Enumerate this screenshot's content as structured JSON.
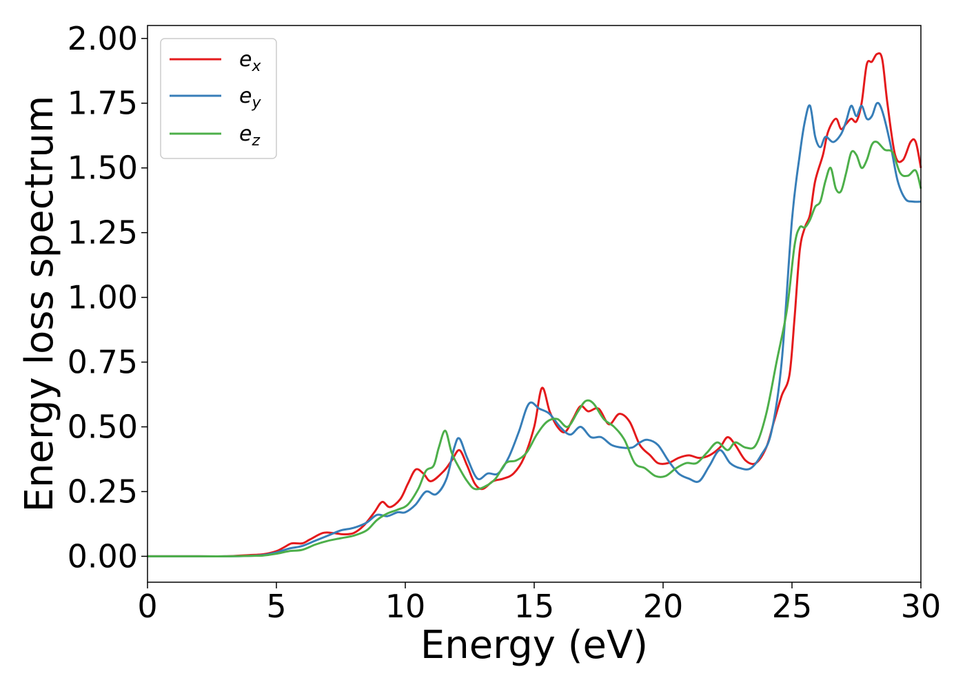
{
  "chart_data": {
    "type": "line",
    "title": "",
    "xlabel": "Energy (eV)",
    "ylabel": "Energy loss spectrum",
    "xlim": [
      0,
      30
    ],
    "ylim": [
      -0.1,
      2.05
    ],
    "xticks": [
      0,
      5,
      10,
      15,
      20,
      25,
      30
    ],
    "xtick_labels": [
      "0",
      "5",
      "10",
      "15",
      "20",
      "25",
      "30"
    ],
    "yticks": [
      0.0,
      0.25,
      0.5,
      0.75,
      1.0,
      1.25,
      1.5,
      1.75,
      2.0
    ],
    "ytick_labels": [
      "0.00",
      "0.25",
      "0.50",
      "0.75",
      "1.00",
      "1.25",
      "1.50",
      "1.75",
      "2.00"
    ],
    "grid": false,
    "legend_position": "top-left",
    "series": [
      {
        "name": "e",
        "subscript": "x",
        "color": "#e41a1c",
        "x": [
          0,
          2,
          3,
          4,
          4.5,
          5,
          5.3,
          5.6,
          6,
          6.3,
          6.8,
          7.2,
          7.6,
          8,
          8.4,
          8.8,
          9.1,
          9.4,
          9.8,
          10.1,
          10.4,
          10.7,
          11,
          11.5,
          11.8,
          12.1,
          12.4,
          12.7,
          13,
          13.4,
          13.8,
          14.2,
          14.6,
          15,
          15.3,
          15.6,
          15.9,
          16.2,
          16.5,
          16.8,
          17.1,
          17.5,
          17.9,
          18.3,
          18.7,
          19.1,
          19.5,
          19.8,
          20.2,
          20.6,
          21,
          21.4,
          21.8,
          22.2,
          22.5,
          22.8,
          23.2,
          23.6,
          24,
          24.3,
          24.6,
          24.9,
          25.1,
          25.3,
          25.5,
          25.7,
          25.9,
          26.2,
          26.4,
          26.7,
          26.9,
          27.1,
          27.3,
          27.5,
          27.7,
          27.9,
          28.1,
          28.3,
          28.5,
          28.7,
          29,
          29.3,
          29.6,
          29.8,
          30
        ],
        "values": [
          0.0,
          0.0,
          0.0,
          0.005,
          0.008,
          0.02,
          0.035,
          0.05,
          0.05,
          0.065,
          0.09,
          0.09,
          0.085,
          0.09,
          0.12,
          0.17,
          0.21,
          0.19,
          0.22,
          0.28,
          0.335,
          0.32,
          0.29,
          0.33,
          0.37,
          0.41,
          0.35,
          0.28,
          0.26,
          0.29,
          0.3,
          0.32,
          0.38,
          0.5,
          0.65,
          0.56,
          0.5,
          0.48,
          0.53,
          0.58,
          0.56,
          0.57,
          0.51,
          0.55,
          0.52,
          0.43,
          0.39,
          0.36,
          0.36,
          0.38,
          0.39,
          0.38,
          0.39,
          0.42,
          0.46,
          0.43,
          0.37,
          0.36,
          0.42,
          0.52,
          0.62,
          0.7,
          0.92,
          1.18,
          1.27,
          1.32,
          1.45,
          1.55,
          1.64,
          1.69,
          1.65,
          1.67,
          1.69,
          1.68,
          1.75,
          1.9,
          1.91,
          1.94,
          1.92,
          1.75,
          1.55,
          1.53,
          1.6,
          1.6,
          1.5
        ]
      },
      {
        "name": "e",
        "subscript": "y",
        "color": "#377eb8",
        "x": [
          0,
          2,
          3,
          4,
          4.5,
          5,
          5.5,
          6,
          6.5,
          7,
          7.5,
          8,
          8.5,
          8.9,
          9.3,
          9.7,
          10,
          10.4,
          10.8,
          11.2,
          11.6,
          11.9,
          12.1,
          12.4,
          12.8,
          13.2,
          13.6,
          14,
          14.4,
          14.8,
          15.2,
          15.6,
          16,
          16.4,
          16.8,
          17.2,
          17.6,
          18,
          18.4,
          18.8,
          19.1,
          19.4,
          19.8,
          20.2,
          20.6,
          21,
          21.4,
          21.8,
          22.2,
          22.6,
          23,
          23.4,
          23.8,
          24.2,
          24.6,
          25,
          25.3,
          25.5,
          25.7,
          25.9,
          26.1,
          26.3,
          26.6,
          26.9,
          27.1,
          27.3,
          27.5,
          27.7,
          27.9,
          28.1,
          28.3,
          28.5,
          28.8,
          29.1,
          29.4,
          29.7,
          30
        ],
        "values": [
          0.0,
          0.0,
          0.0,
          0.002,
          0.005,
          0.015,
          0.03,
          0.04,
          0.06,
          0.08,
          0.1,
          0.11,
          0.13,
          0.16,
          0.155,
          0.17,
          0.17,
          0.2,
          0.25,
          0.24,
          0.3,
          0.42,
          0.455,
          0.38,
          0.3,
          0.32,
          0.32,
          0.38,
          0.48,
          0.59,
          0.57,
          0.55,
          0.5,
          0.47,
          0.5,
          0.46,
          0.46,
          0.43,
          0.42,
          0.42,
          0.44,
          0.45,
          0.43,
          0.37,
          0.32,
          0.3,
          0.29,
          0.35,
          0.41,
          0.36,
          0.34,
          0.34,
          0.39,
          0.48,
          0.75,
          1.3,
          1.55,
          1.68,
          1.74,
          1.62,
          1.58,
          1.62,
          1.6,
          1.63,
          1.68,
          1.74,
          1.7,
          1.74,
          1.69,
          1.7,
          1.75,
          1.72,
          1.6,
          1.45,
          1.38,
          1.37,
          1.37
        ]
      },
      {
        "name": "e",
        "subscript": "z",
        "color": "#4daf4a",
        "x": [
          0,
          2,
          3,
          4,
          4.5,
          5,
          5.5,
          6,
          6.5,
          7,
          7.5,
          8,
          8.5,
          8.9,
          9.3,
          9.7,
          10.1,
          10.5,
          10.8,
          11.1,
          11.3,
          11.55,
          11.8,
          12.1,
          12.4,
          12.7,
          13.1,
          13.5,
          13.9,
          14.3,
          14.7,
          15.1,
          15.5,
          15.9,
          16.3,
          16.7,
          17,
          17.3,
          17.7,
          18.1,
          18.5,
          18.9,
          19.3,
          19.7,
          20.1,
          20.5,
          20.9,
          21.3,
          21.7,
          22.1,
          22.5,
          22.8,
          23.2,
          23.6,
          24,
          24.4,
          24.8,
          25.1,
          25.3,
          25.5,
          25.7,
          25.9,
          26.1,
          26.3,
          26.5,
          26.7,
          26.9,
          27.1,
          27.3,
          27.5,
          27.7,
          27.9,
          28.1,
          28.3,
          28.6,
          28.9,
          29.2,
          29.5,
          29.8,
          30
        ],
        "values": [
          0.0,
          0.0,
          0.0,
          0.002,
          0.003,
          0.01,
          0.02,
          0.025,
          0.045,
          0.06,
          0.07,
          0.08,
          0.1,
          0.14,
          0.165,
          0.18,
          0.2,
          0.26,
          0.33,
          0.35,
          0.42,
          0.485,
          0.4,
          0.34,
          0.29,
          0.26,
          0.27,
          0.3,
          0.36,
          0.37,
          0.4,
          0.47,
          0.52,
          0.53,
          0.5,
          0.56,
          0.6,
          0.59,
          0.53,
          0.5,
          0.45,
          0.36,
          0.34,
          0.31,
          0.31,
          0.34,
          0.36,
          0.36,
          0.4,
          0.44,
          0.41,
          0.44,
          0.42,
          0.43,
          0.55,
          0.75,
          0.95,
          1.2,
          1.27,
          1.27,
          1.3,
          1.35,
          1.37,
          1.45,
          1.5,
          1.42,
          1.41,
          1.48,
          1.56,
          1.55,
          1.5,
          1.53,
          1.59,
          1.6,
          1.57,
          1.56,
          1.48,
          1.47,
          1.49,
          1.42
        ]
      }
    ]
  }
}
